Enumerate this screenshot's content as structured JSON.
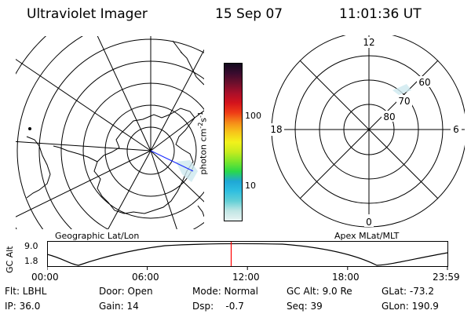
{
  "header": {
    "title": "Ultraviolet Imager",
    "date": "15 Sep 07",
    "time": "11:01:36 UT"
  },
  "colorbar": {
    "unit_label": "photon cm",
    "unit_sup1": "-2",
    "unit_mid": "s",
    "unit_sup2": "-1",
    "tick_100": "100",
    "tick_10": "10",
    "colors": [
      "#e8f2f2",
      "#bfe6e4",
      "#62cfd6",
      "#2fbfe0",
      "#1fa7d6",
      "#2ad84a",
      "#7ae62b",
      "#c8ec1e",
      "#f2f21b",
      "#f7c51a",
      "#f58a19",
      "#ee3b16",
      "#d4131c",
      "#a80f2a",
      "#6e0f2c",
      "#3a0b2e",
      "#120a1e"
    ]
  },
  "apex": {
    "label_12": "12",
    "label_18": "18",
    "label_6": "6",
    "label_0": "0",
    "lat_60": "60",
    "lat_70": "70",
    "lat_80": "80"
  },
  "timeline": {
    "left_label": "Geographic Lat/Lon",
    "right_label": "Apex MLat/MLT",
    "axis_title": "GC Alt",
    "y_top": "9.0",
    "y_bottom": "1.8",
    "x_ticks": [
      "00:00",
      "06:00",
      "12:00",
      "18:00",
      "23:59"
    ],
    "cursor_time": "11:01:36",
    "cursor_color": "#ff0000"
  },
  "status": {
    "flt": "Flt: LBHL",
    "ip": "IP: 36.0",
    "door": "Door: Open",
    "gain": "Gain: 14",
    "mode": "Mode: Normal",
    "dsp": "Dsp:    -0.7",
    "gc_alt": "GC Alt: 9.0 Re",
    "seq": "Seq: 39",
    "glat": "GLat: -73.2",
    "glon": "GLon: 190.9"
  }
}
